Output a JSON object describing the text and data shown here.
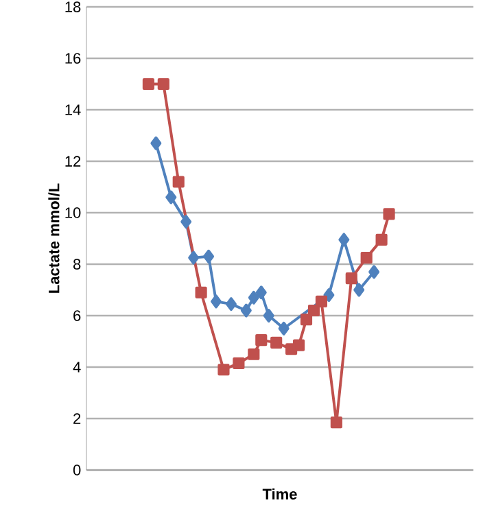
{
  "chart_data": {
    "type": "line",
    "xlabel": "Time",
    "ylabel": "Lactate mmol/L",
    "categories": [
      null,
      null,
      null,
      null,
      null,
      null,
      null,
      null,
      null,
      null,
      null,
      null,
      null,
      null,
      null,
      null,
      null,
      null,
      null,
      null,
      null,
      null,
      null,
      null,
      null,
      null,
      null,
      null,
      null,
      null,
      null,
      null,
      null
    ],
    "ylim": [
      0,
      18
    ],
    "yticks": [
      0,
      2,
      4,
      6,
      8,
      10,
      12,
      14,
      16,
      18
    ],
    "grid": "y",
    "series": [
      {
        "color": "#4f81bd",
        "marker": "diamond",
        "values": [
          null,
          12.7,
          null,
          10.6,
          null,
          9.65,
          8.25,
          null,
          8.3,
          6.55,
          null,
          6.45,
          null,
          6.2,
          6.7,
          6.9,
          6.0,
          null,
          5.5,
          null,
          null,
          null,
          null,
          null,
          6.8,
          null,
          8.95,
          null,
          7.0,
          null,
          7.7,
          null,
          null
        ]
      },
      {
        "color": "#c0504d",
        "marker": "square",
        "values": [
          15.0,
          null,
          15.0,
          null,
          11.2,
          null,
          null,
          6.9,
          null,
          null,
          3.9,
          null,
          4.15,
          null,
          4.5,
          5.05,
          null,
          4.95,
          null,
          4.7,
          4.85,
          5.85,
          6.2,
          6.55,
          null,
          1.85,
          null,
          7.45,
          null,
          8.25,
          null,
          8.95,
          9.95
        ]
      }
    ]
  }
}
